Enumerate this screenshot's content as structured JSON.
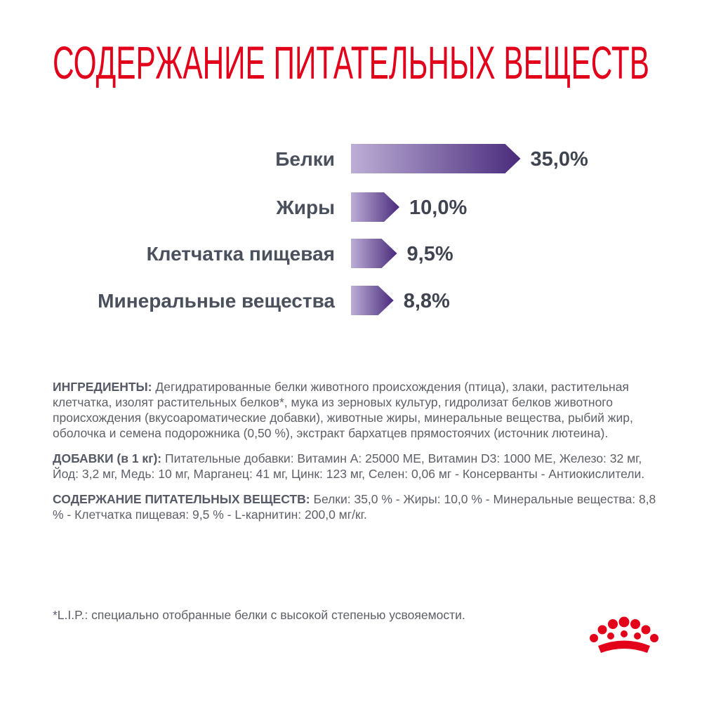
{
  "chart_data": {
    "type": "bar",
    "title": "СОДЕРЖАНИЕ ПИТАТЕЛЬНЫХ ВЕЩЕСТВ",
    "categories": [
      "Белки",
      "Жиры",
      "Клетчатка пищевая",
      "Минеральные вещества"
    ],
    "values": [
      35,
      10,
      9.5,
      8.8
    ],
    "value_labels": [
      "35,0%",
      "10,0%",
      "9,5%",
      "8,8%"
    ],
    "colors": [
      "#bcaed6",
      "#4a2b7c"
    ]
  },
  "composition": {
    "sections": [
      {
        "label": "ИНГРЕДИЕНТЫ:",
        "text": "Дегидратированные белки животного происхождения (птица), злаки, растительная клетчатка, изолят растительных белков*, мука из зерновых культур, гидролизат белков животного происхождения (вкусоароматические добавки), животные жиры, минеральные вещества, рыбий жир, оболочка и семена подорожника (0,50 %), экстракт бархатцев прямостоячих (источник лютеина)."
      },
      {
        "label": "ДОБАВКИ (в 1 кг):",
        "text": "Питательные добавки: Витамин А: 25000 МЕ, Витамин D3: 1000 МЕ, Железо: 32 мг, Йод: 3,2 мг, Медь: 10 мг, Марганец: 41 мг, Цинк: 123 мг, Селен: 0,06 мг - Консерванты - Антиокислители."
      },
      {
        "label": "СОДЕРЖАНИЕ ПИТАТЕЛЬНЫХ ВЕЩЕСТВ:",
        "text": "Белки: 35,0 % - Жиры: 10,0 % - Минеральные вещества: 8,8 % - Клетчатка пищевая: 9,5 % - L-карнитин: 200,0 мг/кг."
      }
    ],
    "footnote": "*L.I.P.: специально отобранные белки с высокой степенью усвояемости."
  }
}
